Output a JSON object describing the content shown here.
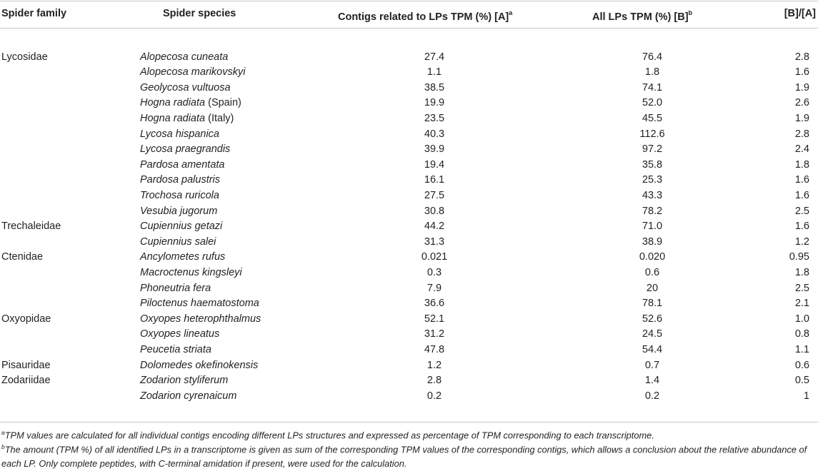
{
  "headers": {
    "family": "Spider family",
    "species": "Spider species",
    "contigs": "Contigs related to LPs TPM (%) [A]",
    "contigs_note": "a",
    "all_lps": "All LPs TPM (%) [B]",
    "all_lps_note": "b",
    "ratio": "[B]/[A]"
  },
  "rows": [
    {
      "family": "Lycosidae",
      "species": "Alopecosa cuneata",
      "qualifier": "",
      "a": "27.4",
      "b": "76.4",
      "ratio": "2.8"
    },
    {
      "family": "",
      "species": "Alopecosa marikovskyi",
      "qualifier": "",
      "a": "1.1",
      "b": "1.8",
      "ratio": "1.6"
    },
    {
      "family": "",
      "species": "Geolycosa vultuosa",
      "qualifier": "",
      "a": "38.5",
      "b": "74.1",
      "ratio": "1.9"
    },
    {
      "family": "",
      "species": "Hogna radiata",
      "qualifier": " (Spain)",
      "a": "19.9",
      "b": "52.0",
      "ratio": "2.6"
    },
    {
      "family": "",
      "species": "Hogna radiata",
      "qualifier": " (Italy)",
      "a": "23.5",
      "b": "45.5",
      "ratio": "1.9"
    },
    {
      "family": "",
      "species": "Lycosa hispanica",
      "qualifier": "",
      "a": "40.3",
      "b": "112.6",
      "ratio": "2.8"
    },
    {
      "family": "",
      "species": "Lycosa praegrandis",
      "qualifier": "",
      "a": "39.9",
      "b": "97.2",
      "ratio": "2.4"
    },
    {
      "family": "",
      "species": "Pardosa amentata",
      "qualifier": "",
      "a": "19.4",
      "b": "35.8",
      "ratio": "1.8"
    },
    {
      "family": "",
      "species": "Pardosa palustris",
      "qualifier": "",
      "a": "16.1",
      "b": "25.3",
      "ratio": "1.6"
    },
    {
      "family": "",
      "species": "Trochosa ruricola",
      "qualifier": "",
      "a": "27.5",
      "b": "43.3",
      "ratio": "1.6"
    },
    {
      "family": "",
      "species": "Vesubia jugorum",
      "qualifier": "",
      "a": "30.8",
      "b": "78.2",
      "ratio": "2.5"
    },
    {
      "family": "Trechaleidae",
      "species": "Cupiennius getazi",
      "qualifier": "",
      "a": "44.2",
      "b": "71.0",
      "ratio": "1.6"
    },
    {
      "family": "",
      "species": "Cupiennius salei",
      "qualifier": "",
      "a": "31.3",
      "b": "38.9",
      "ratio": "1.2"
    },
    {
      "family": "Ctenidae",
      "species": "Ancylometes rufus",
      "qualifier": "",
      "a": "0.021",
      "b": "0.020",
      "ratio": "0.95"
    },
    {
      "family": "",
      "species": "Macroctenus kingsleyi",
      "qualifier": "",
      "a": "0.3",
      "b": "0.6",
      "ratio": "1.8"
    },
    {
      "family": "",
      "species": "Phoneutria fera",
      "qualifier": "",
      "a": "7.9",
      "b": "20",
      "ratio": "2.5"
    },
    {
      "family": "",
      "species": "Piloctenus haematostoma",
      "qualifier": "",
      "a": "36.6",
      "b": "78.1",
      "ratio": "2.1"
    },
    {
      "family": "Oxyopidae",
      "species": "Oxyopes heterophthalmus",
      "qualifier": "",
      "a": "52.1",
      "b": "52.6",
      "ratio": "1.0"
    },
    {
      "family": "",
      "species": "Oxyopes lineatus",
      "qualifier": "",
      "a": "31.2",
      "b": "24.5",
      "ratio": "0.8"
    },
    {
      "family": "",
      "species": "Peucetia striata",
      "qualifier": "",
      "a": "47.8",
      "b": "54.4",
      "ratio": "1.1"
    },
    {
      "family": "Pisauridae",
      "species": "Dolomedes okefinokensis",
      "qualifier": "",
      "a": "1.2",
      "b": "0.7",
      "ratio": "0.6"
    },
    {
      "family": "Zodariidae",
      "species": "Zodarion styliferum",
      "qualifier": "",
      "a": "2.8",
      "b": "1.4",
      "ratio": "0.5"
    },
    {
      "family": "",
      "species": "Zodarion cyrenaicum",
      "qualifier": "",
      "a": "0.2",
      "b": "0.2",
      "ratio": "1"
    }
  ],
  "footnotes": [
    {
      "mark": "a",
      "text": "TPM values are calculated for all individual contigs encoding different LPs structures and expressed as percentage of TPM corresponding to each transcriptome."
    },
    {
      "mark": "b",
      "text": "The amount (TPM %) of all identified LPs in a transcriptome is given as sum of the corresponding TPM values of the corresponding contigs, which allows a conclusion about the relative abundance of each LP. Only complete peptides, with C-terminal amidation if present, were used for the calculation."
    }
  ]
}
